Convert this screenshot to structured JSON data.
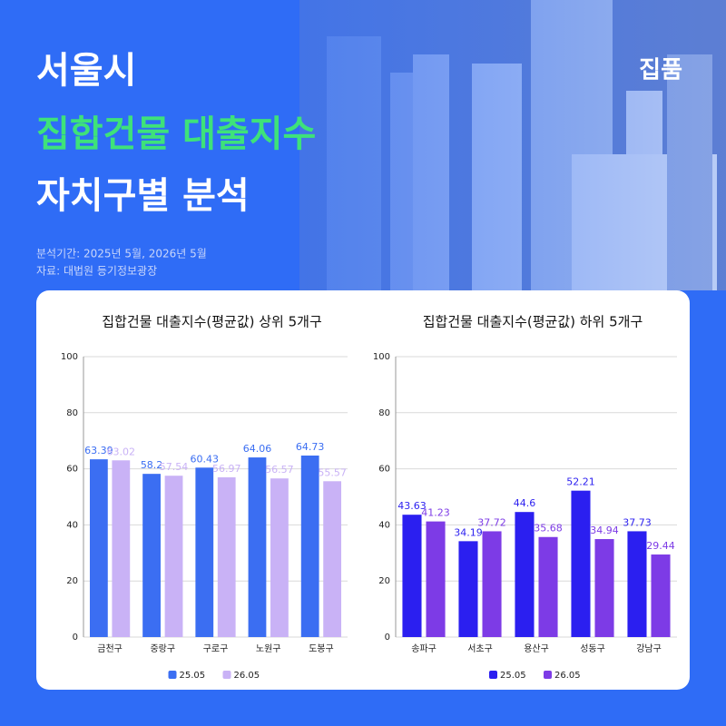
{
  "header": {
    "title_line1": "서울시",
    "title_line2": "집합건물 대출지수",
    "title_line3": "자치구별 분석",
    "brand": "집품",
    "period": "분석기간: 2025년 5월, 2026년 5월",
    "source": "자료: 대법원 등기정보광장"
  },
  "chart_data": [
    {
      "type": "bar",
      "title": "집합건물 대출지수(평균값) 상위 5개구",
      "categories": [
        "금천구",
        "중랑구",
        "구로구",
        "노원구",
        "도봉구"
      ],
      "series": [
        {
          "name": "25.05",
          "color": "#3b6ef2",
          "values": [
            63.39,
            58.2,
            60.43,
            64.06,
            64.73
          ]
        },
        {
          "name": "26.05",
          "color": "#c9b2f6",
          "values": [
            63.02,
            57.54,
            56.97,
            56.57,
            55.57
          ]
        }
      ],
      "ylim": [
        0,
        100
      ],
      "yticks": [
        0,
        20,
        40,
        60,
        80,
        100
      ],
      "grid": true
    },
    {
      "type": "bar",
      "title": "집합건물 대출지수(평균값) 하위 5개구",
      "categories": [
        "송파구",
        "서초구",
        "용산구",
        "성동구",
        "강남구"
      ],
      "series": [
        {
          "name": "25.05",
          "color": "#2b1ff0",
          "values": [
            43.63,
            34.19,
            44.6,
            52.21,
            37.73
          ]
        },
        {
          "name": "26.05",
          "color": "#7d3be6",
          "values": [
            41.23,
            37.72,
            35.68,
            34.94,
            29.44
          ]
        }
      ],
      "ylim": [
        0,
        100
      ],
      "yticks": [
        0,
        20,
        40,
        60,
        80,
        100
      ],
      "grid": true
    }
  ]
}
